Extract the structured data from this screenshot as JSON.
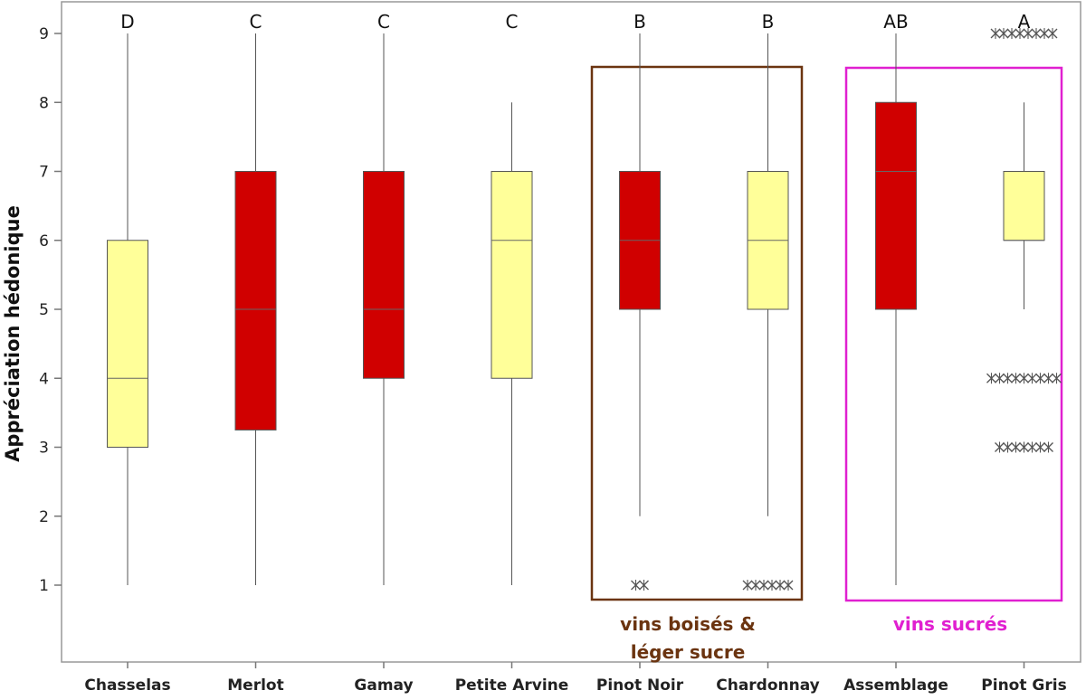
{
  "chart_data": {
    "type": "box",
    "ylabel": "Appréciation hédonique",
    "ylim": [
      0,
      9.45
    ],
    "yticks": [
      1,
      2,
      3,
      4,
      5,
      6,
      7,
      8,
      9
    ],
    "grid": false,
    "colors": {
      "red": "#d00000",
      "yellow": "#ffff99",
      "outline": "#555555",
      "whisker": "#555555",
      "median": "#666666"
    },
    "categories": [
      "Chasselas",
      "Merlot",
      "Gamay",
      "Petite Arvine",
      "Pinot Noir",
      "Chardonnay",
      "Assemblage",
      "Pinot Gris"
    ],
    "boxes": [
      {
        "category": "Chasselas",
        "min": 1,
        "q1": 3,
        "median": 4,
        "q3": 6,
        "max": 9,
        "color": "yellow",
        "letter": "D",
        "outliers": []
      },
      {
        "category": "Merlot",
        "min": 1,
        "q1": 3.25,
        "median": 5,
        "q3": 7,
        "max": 9,
        "color": "red",
        "letter": "C",
        "outliers": []
      },
      {
        "category": "Gamay",
        "min": 1,
        "q1": 4,
        "median": 5,
        "q3": 7,
        "max": 9,
        "color": "red",
        "letter": "C",
        "outliers": []
      },
      {
        "category": "Petite Arvine",
        "min": 1,
        "q1": 4,
        "median": 6,
        "q3": 7,
        "max": 8,
        "color": "yellow",
        "letter": "C",
        "outliers": []
      },
      {
        "category": "Pinot Noir",
        "min": 2,
        "q1": 5,
        "median": 6,
        "q3": 7,
        "max": 9,
        "color": "red",
        "letter": "B",
        "outliers": [
          {
            "value": 1,
            "count": 2
          }
        ]
      },
      {
        "category": "Chardonnay",
        "min": 2,
        "q1": 5,
        "median": 6,
        "q3": 7,
        "max": 9,
        "color": "yellow",
        "letter": "B",
        "outliers": [
          {
            "value": 1,
            "count": 6
          }
        ]
      },
      {
        "category": "Assemblage",
        "min": 1,
        "q1": 5,
        "median": 7,
        "q3": 8,
        "max": 9,
        "color": "red",
        "letter": "AB",
        "outliers": []
      },
      {
        "category": "Pinot Gris",
        "min": 5,
        "q1": 6,
        "median": 6,
        "q3": 7,
        "max": 8,
        "color": "yellow",
        "letter": "A",
        "outliers": [
          {
            "value": 9,
            "count": 8
          },
          {
            "value": 4,
            "count": 9
          },
          {
            "value": 3,
            "count": 7
          }
        ]
      }
    ],
    "groups": [
      {
        "label_lines": [
          "vins boisés &",
          "léger sucre"
        ],
        "categories": [
          "Pinot Noir",
          "Chardonnay"
        ],
        "color": "#6b3410"
      },
      {
        "label_lines": [
          "vins sucrés"
        ],
        "categories": [
          "Assemblage",
          "Pinot Gris"
        ],
        "color": "#e020d0"
      }
    ]
  }
}
